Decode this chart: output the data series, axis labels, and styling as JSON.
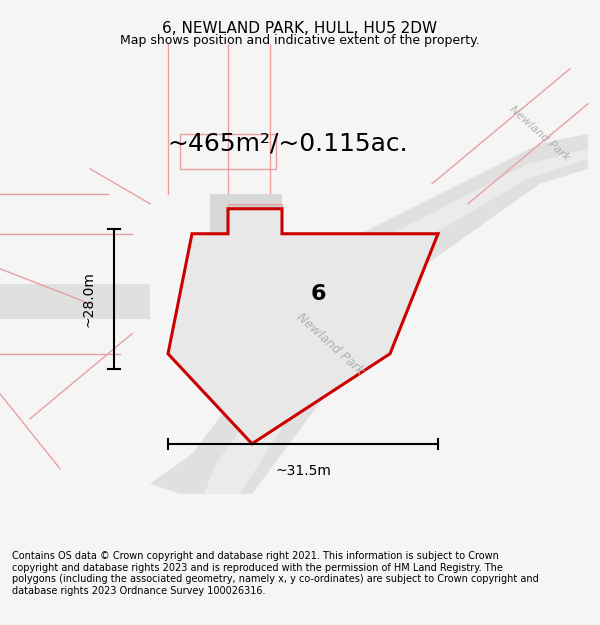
{
  "title": "6, NEWLAND PARK, HULL, HU5 2DW",
  "subtitle": "Map shows position and indicative extent of the property.",
  "area_label": "~465m²/~0.115ac.",
  "plot_number": "6",
  "dim_width": "~31.5m",
  "dim_height": "~28.0m",
  "footer": "Contains OS data © Crown copyright and database right 2021. This information is subject to Crown copyright and database rights 2023 and is reproduced with the permission of HM Land Registry. The polygons (including the associated geometry, namely x, y co-ordinates) are subject to Crown copyright and database rights 2023 Ordnance Survey 100026316.",
  "bg_color": "#f5f5f5",
  "map_bg": "#ffffff",
  "plot_fill": "#e8e8e8",
  "plot_edge": "#cc0000",
  "road_fill": "#d8d8d8",
  "road_text_color": "#aaaaaa",
  "other_lines_color": "#e8a0a0",
  "title_fontsize": 11,
  "subtitle_fontsize": 9,
  "area_fontsize": 18,
  "plot_num_fontsize": 16,
  "dim_fontsize": 10,
  "footer_fontsize": 7
}
